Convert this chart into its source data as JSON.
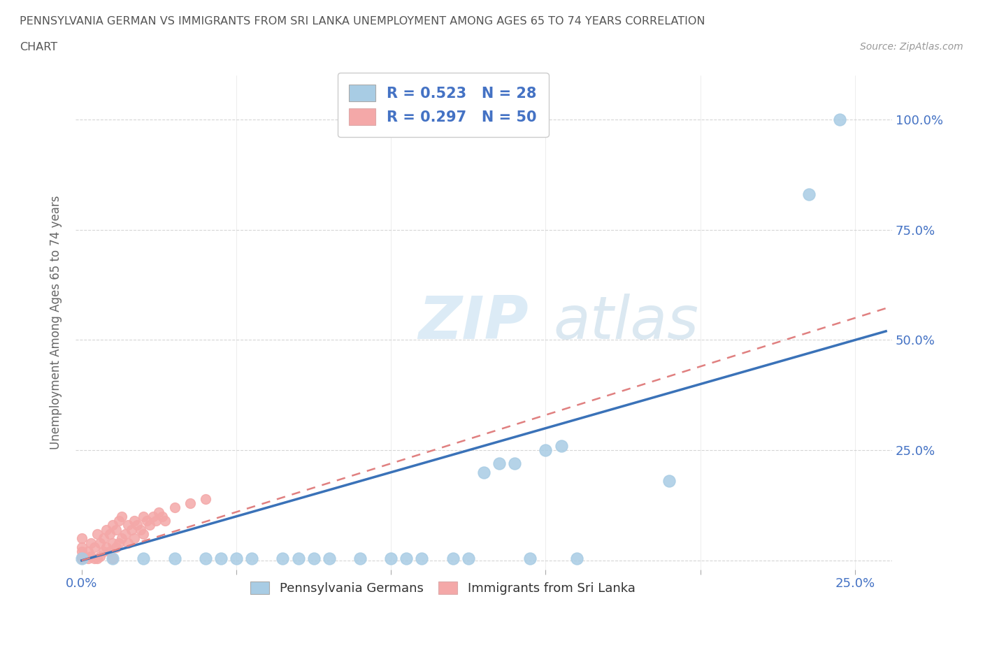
{
  "title_line1": "PENNSYLVANIA GERMAN VS IMMIGRANTS FROM SRI LANKA UNEMPLOYMENT AMONG AGES 65 TO 74 YEARS CORRELATION",
  "title_line2": "CHART",
  "source": "Source: ZipAtlas.com",
  "ylabel": "Unemployment Among Ages 65 to 74 years",
  "R_blue": 0.523,
  "N_blue": 28,
  "R_pink": 0.297,
  "N_pink": 50,
  "blue_color": "#a8cce4",
  "pink_color": "#f4a8a8",
  "blue_line_color": "#3a72b8",
  "pink_line_color": "#e08080",
  "legend_label_blue": "Pennsylvania Germans",
  "legend_label_pink": "Immigrants from Sri Lanka",
  "xmin": -0.002,
  "xmax": 0.262,
  "ymin": -0.02,
  "ymax": 1.1,
  "background_color": "#ffffff",
  "grid_color": "#cccccc",
  "blue_scatter_x": [
    0.0,
    0.01,
    0.02,
    0.03,
    0.04,
    0.045,
    0.05,
    0.055,
    0.065,
    0.07,
    0.075,
    0.08,
    0.09,
    0.1,
    0.105,
    0.11,
    0.12,
    0.125,
    0.13,
    0.135,
    0.14,
    0.145,
    0.15,
    0.155,
    0.16,
    0.19,
    0.235,
    0.245
  ],
  "blue_scatter_y": [
    0.005,
    0.005,
    0.005,
    0.005,
    0.005,
    0.005,
    0.005,
    0.005,
    0.005,
    0.005,
    0.005,
    0.005,
    0.005,
    0.005,
    0.005,
    0.005,
    0.005,
    0.005,
    0.2,
    0.22,
    0.22,
    0.005,
    0.25,
    0.26,
    0.005,
    0.18,
    0.83,
    1.0
  ],
  "pink_scatter_x": [
    0.0,
    0.0,
    0.0,
    0.0,
    0.0,
    0.002,
    0.002,
    0.003,
    0.003,
    0.004,
    0.004,
    0.005,
    0.005,
    0.006,
    0.006,
    0.007,
    0.007,
    0.008,
    0.008,
    0.009,
    0.009,
    0.01,
    0.01,
    0.01,
    0.011,
    0.011,
    0.012,
    0.012,
    0.013,
    0.013,
    0.014,
    0.015,
    0.015,
    0.016,
    0.017,
    0.017,
    0.018,
    0.019,
    0.02,
    0.02,
    0.021,
    0.022,
    0.023,
    0.024,
    0.025,
    0.026,
    0.027,
    0.03,
    0.035,
    0.04
  ],
  "pink_scatter_y": [
    0.005,
    0.01,
    0.02,
    0.03,
    0.05,
    0.005,
    0.02,
    0.01,
    0.04,
    0.005,
    0.03,
    0.005,
    0.06,
    0.01,
    0.04,
    0.02,
    0.05,
    0.03,
    0.07,
    0.02,
    0.06,
    0.005,
    0.04,
    0.08,
    0.03,
    0.07,
    0.04,
    0.09,
    0.05,
    0.1,
    0.06,
    0.04,
    0.08,
    0.07,
    0.05,
    0.09,
    0.08,
    0.07,
    0.06,
    0.1,
    0.09,
    0.08,
    0.1,
    0.09,
    0.11,
    0.1,
    0.09,
    0.12,
    0.13,
    0.14
  ]
}
